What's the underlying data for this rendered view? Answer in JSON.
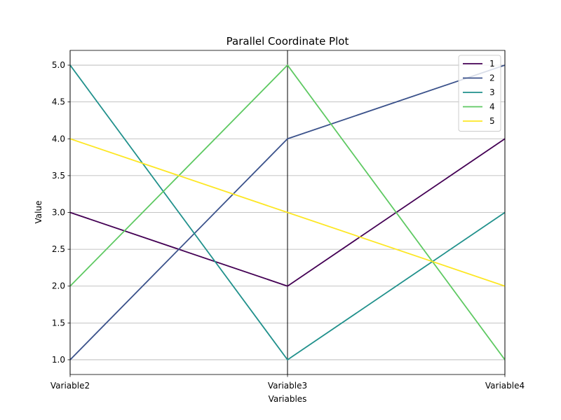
{
  "chart_data": {
    "type": "line",
    "title": "Parallel Coordinate Plot",
    "xlabel": "Variables",
    "ylabel": "Value",
    "categories": [
      "Variable2",
      "Variable3",
      "Variable4"
    ],
    "ylim": [
      0.8,
      5.2
    ],
    "yticks": [
      1.0,
      1.5,
      2.0,
      2.5,
      3.0,
      3.5,
      4.0,
      4.5,
      5.0
    ],
    "ytick_labels": [
      "1.0",
      "1.5",
      "2.0",
      "2.5",
      "3.0",
      "3.5",
      "4.0",
      "4.5",
      "5.0"
    ],
    "grid": "horizontal",
    "legend_position": "top-right",
    "series": [
      {
        "name": "1",
        "color": "#440154",
        "values": [
          3,
          2,
          4
        ]
      },
      {
        "name": "2",
        "color": "#3b528b",
        "values": [
          1,
          4,
          5
        ]
      },
      {
        "name": "3",
        "color": "#21918c",
        "values": [
          5,
          1,
          3
        ]
      },
      {
        "name": "4",
        "color": "#5ec962",
        "values": [
          2,
          5,
          1
        ]
      },
      {
        "name": "5",
        "color": "#fde725",
        "values": [
          4,
          3,
          2
        ]
      }
    ]
  }
}
